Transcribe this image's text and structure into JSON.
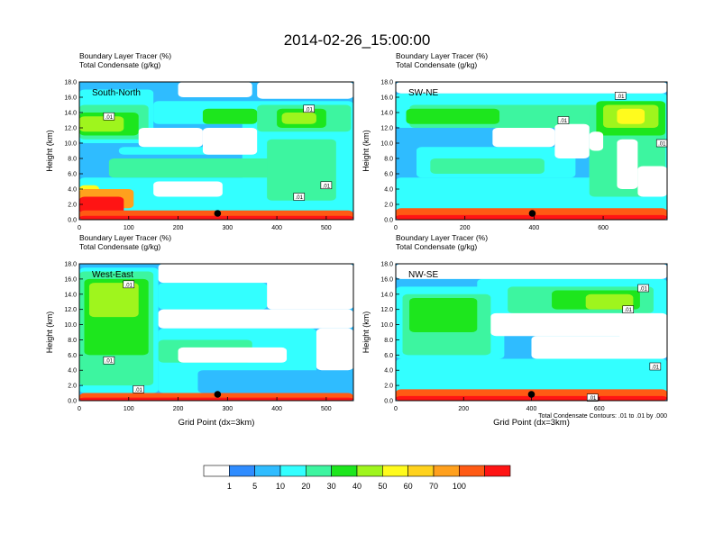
{
  "figure": {
    "title": "2014-02-26_15:00:00",
    "contour_note": "Total Condensate Contours: .01 to .01 by .000",
    "marker_label": ".01"
  },
  "colorbar": {
    "labels": [
      "1",
      "5",
      "10",
      "20",
      "30",
      "40",
      "50",
      "60",
      "70",
      "100"
    ],
    "colors": [
      "#ffffff",
      "#2f8cff",
      "#2fbcff",
      "#33ffff",
      "#3df5a0",
      "#1de61d",
      "#9ff51d",
      "#fffb1d",
      "#ffd21d",
      "#ffa01d",
      "#ff5a14",
      "#ff1414"
    ]
  },
  "chart_data": [
    {
      "type": "heatmap",
      "panel_label": "South-North",
      "title_lines": [
        "Boundary Layer Tracer    (%)",
        "Total Condensate   (g/kg)"
      ],
      "ylabel": "Height (km)",
      "xlabel": "",
      "ylim": [
        0,
        18
      ],
      "yticks": [
        "0.0",
        "2.0",
        "4.0",
        "6.0",
        "8.0",
        "10.0",
        "12.0",
        "14.0",
        "16.0",
        "18.0"
      ],
      "xlim": [
        0,
        555
      ],
      "xticks": [
        0,
        100,
        200,
        300,
        400,
        500
      ],
      "station_x": 280,
      "contour_labels": [
        [
          60,
          13.5
        ],
        [
          465,
          14.5
        ],
        [
          445,
          3.0
        ],
        [
          500,
          4.5
        ]
      ],
      "layers": [
        {
          "level": 3,
          "x0": 0,
          "x1": 555,
          "y0": 1.0,
          "y1": 5.5
        },
        {
          "level": 3,
          "x0": 80,
          "x1": 400,
          "y0": 8.5,
          "y1": 9.5
        },
        {
          "level": 3,
          "x0": 0,
          "x1": 150,
          "y0": 10.0,
          "y1": 17.0
        },
        {
          "level": 3,
          "x0": 150,
          "x1": 555,
          "y0": 12.5,
          "y1": 15.5
        },
        {
          "level": 3,
          "x0": 330,
          "x1": 555,
          "y0": 5.0,
          "y1": 15.0
        },
        {
          "level": 4,
          "x0": 60,
          "x1": 450,
          "y0": 5.5,
          "y1": 8.0
        },
        {
          "level": 4,
          "x0": 0,
          "x1": 140,
          "y0": 10.5,
          "y1": 15.0
        },
        {
          "level": 4,
          "x0": 360,
          "x1": 550,
          "y0": 11.5,
          "y1": 15.0
        },
        {
          "level": 4,
          "x0": 380,
          "x1": 520,
          "y0": 2.5,
          "y1": 10.5
        },
        {
          "level": 5,
          "x0": 0,
          "x1": 120,
          "y0": 11.0,
          "y1": 14.0
        },
        {
          "level": 5,
          "x0": 250,
          "x1": 360,
          "y0": 12.5,
          "y1": 14.5
        },
        {
          "level": 5,
          "x0": 400,
          "x1": 500,
          "y0": 12.0,
          "y1": 14.5
        },
        {
          "level": 6,
          "x0": 0,
          "x1": 90,
          "y0": 11.5,
          "y1": 13.5
        },
        {
          "level": 6,
          "x0": 410,
          "x1": 480,
          "y0": 12.5,
          "y1": 14.0
        },
        {
          "level": 7,
          "x0": 0,
          "x1": 40,
          "y0": 1.5,
          "y1": 4.5
        },
        {
          "level": 9,
          "x0": 0,
          "x1": 110,
          "y0": 1.5,
          "y1": 4.0
        },
        {
          "level": 11,
          "x0": 0,
          "x1": 90,
          "y0": 0.8,
          "y1": 3.0
        },
        {
          "level": 10,
          "x0": 0,
          "x1": 555,
          "y0": 0,
          "y1": 1.2
        },
        {
          "level": 11,
          "x0": 0,
          "x1": 555,
          "y0": 0,
          "y1": 0.5
        },
        {
          "level": 0,
          "x0": 120,
          "x1": 250,
          "y0": 9.5,
          "y1": 12.0
        },
        {
          "level": 0,
          "x0": 250,
          "x1": 360,
          "y0": 8.5,
          "y1": 12.0
        },
        {
          "level": 0,
          "x0": 200,
          "x1": 350,
          "y0": 16.0,
          "y1": 18.0
        },
        {
          "level": 0,
          "x0": 360,
          "x1": 555,
          "y0": 15.8,
          "y1": 18.0
        },
        {
          "level": 0,
          "x0": 150,
          "x1": 290,
          "y0": 3.0,
          "y1": 5.0
        }
      ]
    },
    {
      "type": "heatmap",
      "panel_label": "SW-NE",
      "title_lines": [
        "Boundary Layer Tracer    (%)",
        "Total Condensate   (g/kg)"
      ],
      "ylabel": "Height (km)",
      "xlabel": "",
      "ylim": [
        0,
        18
      ],
      "yticks": [
        "0.0",
        "2.0",
        "4.0",
        "6.0",
        "8.0",
        "10.0",
        "12.0",
        "14.0",
        "16.0",
        "18.0"
      ],
      "xlim": [
        0,
        785
      ],
      "xticks": [
        0,
        200,
        400,
        600
      ],
      "station_x": 395,
      "contour_labels": [
        [
          650,
          16.2
        ],
        [
          485,
          13.0
        ],
        [
          770,
          10.0
        ]
      ],
      "layers": [
        {
          "level": 3,
          "x0": 0,
          "x1": 785,
          "y0": 1.0,
          "y1": 5.5
        },
        {
          "level": 3,
          "x0": 0,
          "x1": 785,
          "y0": 12.0,
          "y1": 16.5
        },
        {
          "level": 3,
          "x0": 560,
          "x1": 785,
          "y0": 5.0,
          "y1": 14.0
        },
        {
          "level": 3,
          "x0": 60,
          "x1": 520,
          "y0": 5.5,
          "y1": 9.5
        },
        {
          "level": 4,
          "x0": 40,
          "x1": 780,
          "y0": 12.0,
          "y1": 15.0
        },
        {
          "level": 4,
          "x0": 560,
          "x1": 780,
          "y0": 3.0,
          "y1": 14.5
        },
        {
          "level": 4,
          "x0": 100,
          "x1": 430,
          "y0": 6.0,
          "y1": 8.0
        },
        {
          "level": 5,
          "x0": 30,
          "x1": 300,
          "y0": 12.5,
          "y1": 14.5
        },
        {
          "level": 5,
          "x0": 580,
          "x1": 780,
          "y0": 11.0,
          "y1": 15.5
        },
        {
          "level": 6,
          "x0": 600,
          "x1": 760,
          "y0": 12.0,
          "y1": 15.0
        },
        {
          "level": 7,
          "x0": 640,
          "x1": 720,
          "y0": 12.5,
          "y1": 14.5
        },
        {
          "level": 10,
          "x0": 0,
          "x1": 785,
          "y0": 0,
          "y1": 1.5
        },
        {
          "level": 11,
          "x0": 0,
          "x1": 785,
          "y0": 0,
          "y1": 0.6
        },
        {
          "level": 0,
          "x0": 280,
          "x1": 460,
          "y0": 9.5,
          "y1": 12.0
        },
        {
          "level": 0,
          "x0": 460,
          "x1": 560,
          "y0": 8.0,
          "y1": 12.5
        },
        {
          "level": 0,
          "x0": 560,
          "x1": 600,
          "y0": 9.0,
          "y1": 11.5
        },
        {
          "level": 0,
          "x0": 0,
          "x1": 785,
          "y0": 16.5,
          "y1": 18.0
        },
        {
          "level": 0,
          "x0": 640,
          "x1": 700,
          "y0": 4.0,
          "y1": 10.5
        },
        {
          "level": 0,
          "x0": 700,
          "x1": 785,
          "y0": 3.0,
          "y1": 7.0
        }
      ]
    },
    {
      "type": "heatmap",
      "panel_label": "West-East",
      "title_lines": [
        "Boundary Layer Tracer    (%)",
        "Total Condensate   (g/kg)"
      ],
      "ylabel": "Height (km)",
      "xlabel": "Grid Point (dx=3km)",
      "ylim": [
        0,
        18
      ],
      "yticks": [
        "0.0",
        "2.0",
        "4.0",
        "6.0",
        "8.0",
        "10.0",
        "12.0",
        "14.0",
        "16.0",
        "18.0"
      ],
      "xlim": [
        0,
        555
      ],
      "xticks": [
        0,
        100,
        200,
        300,
        400,
        500
      ],
      "station_x": 280,
      "contour_labels": [
        [
          100,
          15.3
        ],
        [
          60,
          5.3
        ],
        [
          120,
          1.5
        ]
      ],
      "layers": [
        {
          "level": 3,
          "x0": 0,
          "x1": 160,
          "y0": 1.0,
          "y1": 17.5
        },
        {
          "level": 3,
          "x0": 160,
          "x1": 380,
          "y0": 12.0,
          "y1": 15.5
        },
        {
          "level": 3,
          "x0": 160,
          "x1": 480,
          "y0": 1.0,
          "y1": 9.5
        },
        {
          "level": 2,
          "x0": 240,
          "x1": 555,
          "y0": 1.0,
          "y1": 4.0
        },
        {
          "level": 4,
          "x0": 0,
          "x1": 150,
          "y0": 2.0,
          "y1": 17.0
        },
        {
          "level": 5,
          "x0": 10,
          "x1": 140,
          "y0": 6.0,
          "y1": 16.0
        },
        {
          "level": 6,
          "x0": 20,
          "x1": 120,
          "y0": 11.0,
          "y1": 15.5
        },
        {
          "level": 4,
          "x0": 160,
          "x1": 350,
          "y0": 5.0,
          "y1": 8.0
        },
        {
          "level": 10,
          "x0": 0,
          "x1": 555,
          "y0": 0,
          "y1": 1.0
        },
        {
          "level": 11,
          "x0": 0,
          "x1": 555,
          "y0": 0,
          "y1": 0.4
        },
        {
          "level": 0,
          "x0": 160,
          "x1": 555,
          "y0": 9.5,
          "y1": 12.0
        },
        {
          "level": 0,
          "x0": 380,
          "x1": 555,
          "y0": 12.0,
          "y1": 18.0
        },
        {
          "level": 0,
          "x0": 160,
          "x1": 555,
          "y0": 15.5,
          "y1": 18.0
        },
        {
          "level": 0,
          "x0": 480,
          "x1": 555,
          "y0": 4.0,
          "y1": 9.5
        },
        {
          "level": 0,
          "x0": 200,
          "x1": 420,
          "y0": 5.0,
          "y1": 7.0
        }
      ]
    },
    {
      "type": "heatmap",
      "panel_label": "NW-SE",
      "title_lines": [
        "Boundary Layer Tracer    (%)",
        "Total Condensate   (g/kg)"
      ],
      "ylabel": "Height (km)",
      "xlabel": "Grid Point (dx=3km)",
      "ylim": [
        0,
        18
      ],
      "yticks": [
        "0.0",
        "2.0",
        "4.0",
        "6.0",
        "8.0",
        "10.0",
        "12.0",
        "14.0",
        "16.0",
        "18.0"
      ],
      "xlim": [
        0,
        800
      ],
      "xticks": [
        0,
        200,
        400,
        600
      ],
      "station_x": 400,
      "contour_labels": [
        [
          730,
          14.8
        ],
        [
          685,
          12.0
        ],
        [
          765,
          4.5
        ],
        [
          580,
          0.4
        ]
      ],
      "layers": [
        {
          "level": 3,
          "x0": 0,
          "x1": 800,
          "y0": 1.0,
          "y1": 5.5
        },
        {
          "level": 3,
          "x0": 0,
          "x1": 320,
          "y0": 5.5,
          "y1": 15.0
        },
        {
          "level": 3,
          "x0": 240,
          "x1": 800,
          "y0": 11.0,
          "y1": 16.0
        },
        {
          "level": 3,
          "x0": 400,
          "x1": 700,
          "y0": 6.0,
          "y1": 8.5
        },
        {
          "level": 4,
          "x0": 20,
          "x1": 280,
          "y0": 6.0,
          "y1": 14.0
        },
        {
          "level": 4,
          "x0": 330,
          "x1": 760,
          "y0": 11.5,
          "y1": 15.0
        },
        {
          "level": 5,
          "x0": 40,
          "x1": 240,
          "y0": 9.0,
          "y1": 13.5
        },
        {
          "level": 5,
          "x0": 460,
          "x1": 720,
          "y0": 12.0,
          "y1": 14.5
        },
        {
          "level": 6,
          "x0": 560,
          "x1": 700,
          "y0": 12.0,
          "y1": 14.0
        },
        {
          "level": 10,
          "x0": 0,
          "x1": 800,
          "y0": 0,
          "y1": 1.5
        },
        {
          "level": 11,
          "x0": 0,
          "x1": 800,
          "y0": 0,
          "y1": 0.6
        },
        {
          "level": 0,
          "x0": 280,
          "x1": 800,
          "y0": 8.5,
          "y1": 11.5
        },
        {
          "level": 0,
          "x0": 400,
          "x1": 800,
          "y0": 5.5,
          "y1": 8.5
        },
        {
          "level": 0,
          "x0": 0,
          "x1": 800,
          "y0": 16.0,
          "y1": 18.0
        },
        {
          "level": 0,
          "x0": 660,
          "x1": 800,
          "y0": 5.5,
          "y1": 11.0
        }
      ]
    }
  ]
}
